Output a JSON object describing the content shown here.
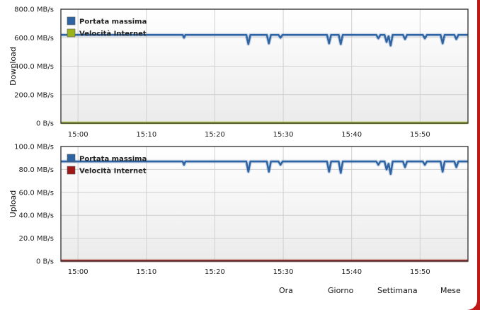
{
  "chart_data": [
    {
      "type": "line",
      "ylabel": "Download",
      "y_tick_labels": [
        "800.0 MB/s",
        "600.0 MB/s",
        "400.0 MB/s",
        "200.0 MB/s",
        "0 B/s"
      ],
      "y_tick_values": [
        800,
        600,
        400,
        200,
        0
      ],
      "ylim": [
        0,
        800
      ],
      "unit": "MB/s",
      "x_tick_labels": [
        "15:00",
        "15:10",
        "15:20",
        "15:30",
        "15:40",
        "15:50"
      ],
      "x_tick_minutes": [
        0,
        10,
        20,
        30,
        40,
        50
      ],
      "xlim_minutes": [
        -2.5,
        57
      ],
      "grid": true,
      "legend_position": "top-left",
      "series": [
        {
          "name": "Portata massima",
          "color": "#2e64a4",
          "points": [
            [
              -2.5,
              620
            ],
            [
              15.3,
              620
            ],
            [
              15.5,
              600
            ],
            [
              15.7,
              620
            ],
            [
              24.6,
              620
            ],
            [
              24.9,
              555
            ],
            [
              25.2,
              620
            ],
            [
              27.6,
              620
            ],
            [
              27.9,
              560
            ],
            [
              28.2,
              620
            ],
            [
              29.3,
              620
            ],
            [
              29.6,
              600
            ],
            [
              29.9,
              620
            ],
            [
              36.4,
              620
            ],
            [
              36.7,
              560
            ],
            [
              37.0,
              620
            ],
            [
              38.1,
              620
            ],
            [
              38.4,
              555
            ],
            [
              38.7,
              620
            ],
            [
              43.6,
              620
            ],
            [
              43.9,
              595
            ],
            [
              44.2,
              620
            ],
            [
              44.8,
              620
            ],
            [
              45.1,
              570
            ],
            [
              45.4,
              610
            ],
            [
              45.7,
              545
            ],
            [
              46.0,
              620
            ],
            [
              47.5,
              620
            ],
            [
              47.8,
              590
            ],
            [
              48.1,
              620
            ],
            [
              50.4,
              620
            ],
            [
              50.7,
              595
            ],
            [
              51.0,
              620
            ],
            [
              53.0,
              620
            ],
            [
              53.3,
              560
            ],
            [
              53.6,
              620
            ],
            [
              55.0,
              620
            ],
            [
              55.3,
              590
            ],
            [
              55.6,
              620
            ],
            [
              57,
              620
            ]
          ]
        },
        {
          "name": "Velocità Internet",
          "color": "#9cb21a",
          "points": [
            [
              -2.5,
              2
            ],
            [
              57,
              2
            ]
          ]
        }
      ]
    },
    {
      "type": "line",
      "ylabel": "Upload",
      "y_tick_labels": [
        "100.0 MB/s",
        "80.0 MB/s",
        "60.0 MB/s",
        "40.0 MB/s",
        "20.0 MB/s",
        "0 B/s"
      ],
      "y_tick_values": [
        100,
        80,
        60,
        40,
        20,
        0
      ],
      "ylim": [
        0,
        100
      ],
      "unit": "MB/s",
      "x_tick_labels": [
        "15:00",
        "15:10",
        "15:20",
        "15:30",
        "15:40",
        "15:50"
      ],
      "x_tick_minutes": [
        0,
        10,
        20,
        30,
        40,
        50
      ],
      "xlim_minutes": [
        -2.5,
        57
      ],
      "grid": true,
      "legend_position": "top-left",
      "series": [
        {
          "name": "Portata massima",
          "color": "#2e64a4",
          "points": [
            [
              -2.5,
              87
            ],
            [
              15.3,
              87
            ],
            [
              15.5,
              84
            ],
            [
              15.7,
              87
            ],
            [
              24.6,
              87
            ],
            [
              24.9,
              78
            ],
            [
              25.2,
              87
            ],
            [
              27.6,
              87
            ],
            [
              27.9,
              78
            ],
            [
              28.2,
              87
            ],
            [
              29.3,
              87
            ],
            [
              29.6,
              84
            ],
            [
              29.9,
              87
            ],
            [
              36.4,
              87
            ],
            [
              36.7,
              78
            ],
            [
              37.0,
              87
            ],
            [
              38.1,
              87
            ],
            [
              38.4,
              77
            ],
            [
              38.7,
              87
            ],
            [
              43.6,
              87
            ],
            [
              43.9,
              84
            ],
            [
              44.2,
              87
            ],
            [
              44.8,
              87
            ],
            [
              45.1,
              80
            ],
            [
              45.4,
              85
            ],
            [
              45.7,
              76
            ],
            [
              46.0,
              87
            ],
            [
              47.5,
              87
            ],
            [
              47.8,
              82
            ],
            [
              48.1,
              87
            ],
            [
              50.4,
              87
            ],
            [
              50.7,
              84
            ],
            [
              51.0,
              87
            ],
            [
              53.0,
              87
            ],
            [
              53.3,
              78
            ],
            [
              53.6,
              87
            ],
            [
              55.0,
              87
            ],
            [
              55.3,
              82
            ],
            [
              55.6,
              87
            ],
            [
              57,
              87
            ]
          ]
        },
        {
          "name": "Velocità Internet",
          "color": "#a01818",
          "points": [
            [
              -2.5,
              0.4
            ],
            [
              57,
              0.4
            ]
          ]
        }
      ]
    }
  ],
  "time_range_links": [
    {
      "label": "Ora"
    },
    {
      "label": "Giorno"
    },
    {
      "label": "Settimana"
    },
    {
      "label": "Mese"
    }
  ]
}
